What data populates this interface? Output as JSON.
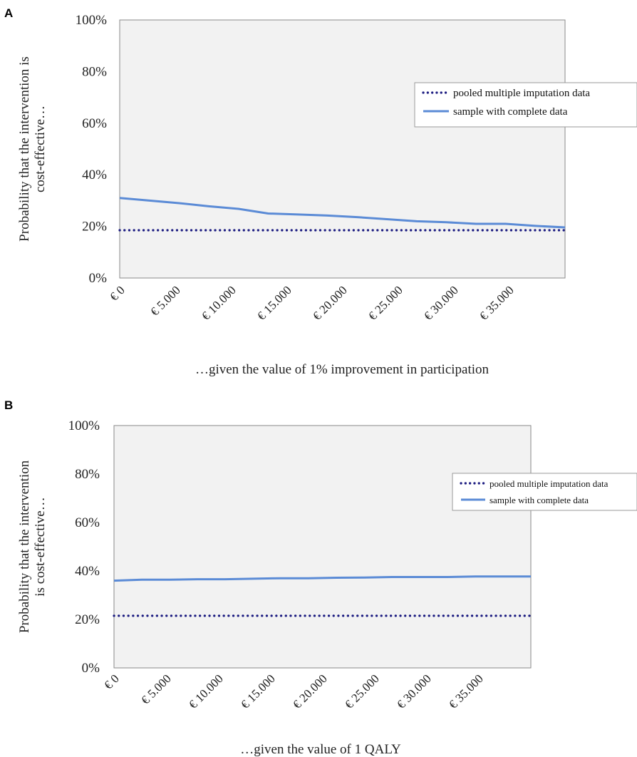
{
  "chart_data": [
    {
      "panel": "A",
      "type": "line",
      "ylabel": [
        "Probability that the intervention is",
        "cost-effective…"
      ],
      "xlabel": "…given the value of 1% improvement in participation",
      "categories": [
        "€ 0",
        "€ 5.000",
        "€ 10.000",
        "€ 15.000",
        "€ 20.000",
        "€ 25.000",
        "€ 30.000",
        "€ 35.000"
      ],
      "yticks": [
        "0%",
        "20%",
        "40%",
        "60%",
        "80%",
        "100%"
      ],
      "ylim": [
        0,
        100
      ],
      "x": [
        0,
        2500,
        5000,
        7500,
        10000,
        12500,
        15000,
        17500,
        20000,
        22500,
        25000,
        27500,
        30000,
        32500,
        35000,
        37500
      ],
      "xlim": [
        0,
        37500
      ],
      "legend_position": "right",
      "series": [
        {
          "name": "pooled multiple imputation data",
          "style": "dotted",
          "color": "#1a1a80",
          "values": [
            18.5,
            18.5,
            18.5,
            18.5,
            18.5,
            18.5,
            18.5,
            18.5,
            18.5,
            18.5,
            18.5,
            18.5,
            18.5,
            18.5,
            18.5,
            18.5
          ]
        },
        {
          "name": "sample with complete data",
          "style": "solid",
          "color": "#5b8bd6",
          "values": [
            31,
            30,
            29,
            27.8,
            26.8,
            25,
            24.6,
            24.2,
            23.6,
            22.8,
            22,
            21.6,
            21,
            21,
            20.2,
            19.6
          ]
        }
      ]
    },
    {
      "panel": "B",
      "type": "line",
      "ylabel": [
        "Probability that the intervention",
        "is cost-effective…"
      ],
      "xlabel": "…given the value of 1 QALY",
      "categories": [
        "€ 0",
        "€ 5.000",
        "€ 10.000",
        "€ 15.000",
        "€ 20.000",
        "€ 25.000",
        "€ 30.000",
        "€ 35.000"
      ],
      "yticks": [
        "0%",
        "20%",
        "40%",
        "60%",
        "80%",
        "100%"
      ],
      "ylim": [
        0,
        100
      ],
      "x": [
        0,
        2500,
        5000,
        7500,
        10000,
        12500,
        15000,
        17500,
        20000,
        22500,
        25000,
        27500,
        30000,
        32500,
        35000,
        37500
      ],
      "xlim": [
        0,
        37500
      ],
      "legend_position": "right",
      "series": [
        {
          "name": "pooled multiple imputation data",
          "style": "dotted",
          "color": "#1a1a80",
          "values": [
            21.5,
            21.5,
            21.5,
            21.5,
            21.5,
            21.5,
            21.5,
            21.5,
            21.5,
            21.5,
            21.5,
            21.5,
            21.5,
            21.5,
            21.5,
            21.5
          ]
        },
        {
          "name": "sample with complete data",
          "style": "solid",
          "color": "#5b8bd6",
          "values": [
            36,
            36.4,
            36.4,
            36.6,
            36.6,
            36.8,
            37,
            37,
            37.2,
            37.3,
            37.5,
            37.5,
            37.5,
            37.7,
            37.7,
            37.7
          ]
        }
      ]
    }
  ]
}
